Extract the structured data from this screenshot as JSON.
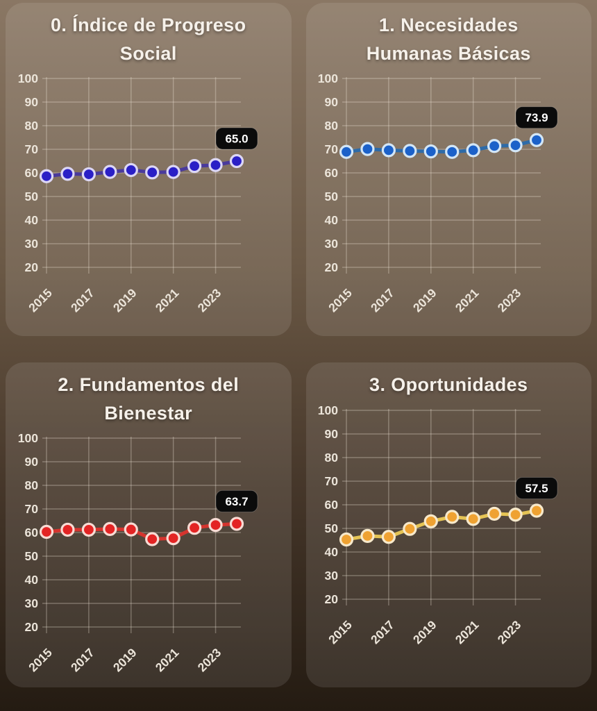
{
  "theme": {
    "bg_top": "#8a7764",
    "bg_bottom": "#241b12",
    "panel_tint": "rgba(255,255,255,0.10)",
    "title_color": "#f6f1ea",
    "axis_text_color": "#ece5da",
    "grid_color": "rgba(250,240,225,0.30)",
    "badge_bg": "#0b0b0b",
    "badge_text_color": "#ffffff"
  },
  "chart_data": [
    {
      "type": "line",
      "title": "0. Índice de Progreso Social",
      "title_lines": [
        "0. Índice de Progreso",
        "Social"
      ],
      "x": [
        2015,
        2016,
        2017,
        2018,
        2019,
        2020,
        2021,
        2022,
        2023,
        2024
      ],
      "values": [
        58.6,
        59.6,
        59.4,
        60.4,
        61.2,
        60.2,
        60.4,
        62.9,
        63.3,
        65.0
      ],
      "last_label": "65.0",
      "xticks": [
        2015,
        2017,
        2019,
        2021,
        2023
      ],
      "yticks": [
        100,
        90,
        80,
        70,
        60,
        50,
        40,
        30,
        20
      ],
      "ylim": [
        20,
        100
      ],
      "grid": true,
      "legend": "none",
      "line_color": "#4a3a9c",
      "dot_color": "#2a1fc6",
      "ring_color": "#dcd7f5"
    },
    {
      "type": "line",
      "title": "1. Necesidades Humanas Básicas",
      "title_lines": [
        "1. Necesidades",
        "Humanas Básicas"
      ],
      "x": [
        2015,
        2016,
        2017,
        2018,
        2019,
        2020,
        2021,
        2022,
        2023,
        2024
      ],
      "values": [
        68.9,
        70.1,
        69.6,
        69.3,
        69.1,
        68.9,
        69.6,
        71.4,
        71.7,
        73.9
      ],
      "last_label": "73.9",
      "xticks": [
        2015,
        2017,
        2019,
        2021,
        2023
      ],
      "yticks": [
        100,
        90,
        80,
        70,
        60,
        50,
        40,
        30,
        20
      ],
      "ylim": [
        20,
        100
      ],
      "grid": true,
      "legend": "none",
      "line_color": "#2e6ba8",
      "dot_color": "#1b61c9",
      "ring_color": "#d3e6f6"
    },
    {
      "type": "line",
      "title": "2. Fundamentos del Bienestar",
      "title_lines": [
        "2. Fundamentos del",
        "Bienestar"
      ],
      "x": [
        2015,
        2016,
        2017,
        2018,
        2019,
        2020,
        2021,
        2022,
        2023,
        2024
      ],
      "values": [
        60.3,
        61.2,
        61.2,
        61.5,
        61.3,
        57.2,
        57.6,
        62.0,
        63.2,
        63.7
      ],
      "last_label": "63.7",
      "xticks": [
        2015,
        2017,
        2019,
        2021,
        2023
      ],
      "yticks": [
        100,
        90,
        80,
        70,
        60,
        50,
        40,
        30,
        20
      ],
      "ylim": [
        20,
        100
      ],
      "grid": true,
      "legend": "none",
      "line_color": "#d5342e",
      "dot_color": "#e32424",
      "ring_color": "#f8dbd4"
    },
    {
      "type": "line",
      "title": "3. Oportunidades",
      "title_lines": [
        "3. Oportunidades"
      ],
      "x": [
        2015,
        2016,
        2017,
        2018,
        2019,
        2020,
        2021,
        2022,
        2023,
        2024
      ],
      "values": [
        45.3,
        46.8,
        46.4,
        49.8,
        53.0,
        54.9,
        54.0,
        56.2,
        55.8,
        57.5
      ],
      "last_label": "57.5",
      "xticks": [
        2015,
        2017,
        2019,
        2021,
        2023
      ],
      "yticks": [
        100,
        90,
        80,
        70,
        60,
        50,
        40,
        30,
        20
      ],
      "ylim": [
        20,
        100
      ],
      "grid": true,
      "legend": "none",
      "line_color": "#e5c455",
      "dot_color": "#efa232",
      "ring_color": "#f7e9cb"
    }
  ]
}
